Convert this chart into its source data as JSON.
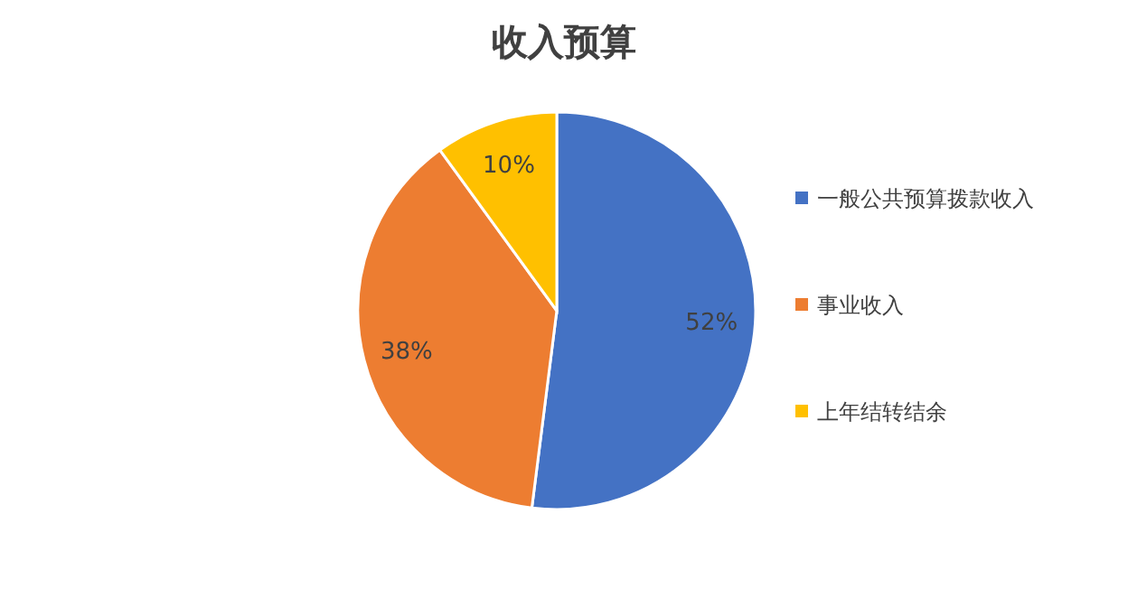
{
  "chart_data": {
    "type": "pie",
    "title": "收入预算",
    "categories": [
      "一般公共预算拨款收入",
      "事业收入",
      "上年结转结余"
    ],
    "values": [
      52,
      38,
      10
    ],
    "colors": [
      "#4472c4",
      "#ed7d31",
      "#ffc000"
    ],
    "value_labels": [
      "52%",
      "38%",
      "10%"
    ],
    "legend": "right"
  }
}
